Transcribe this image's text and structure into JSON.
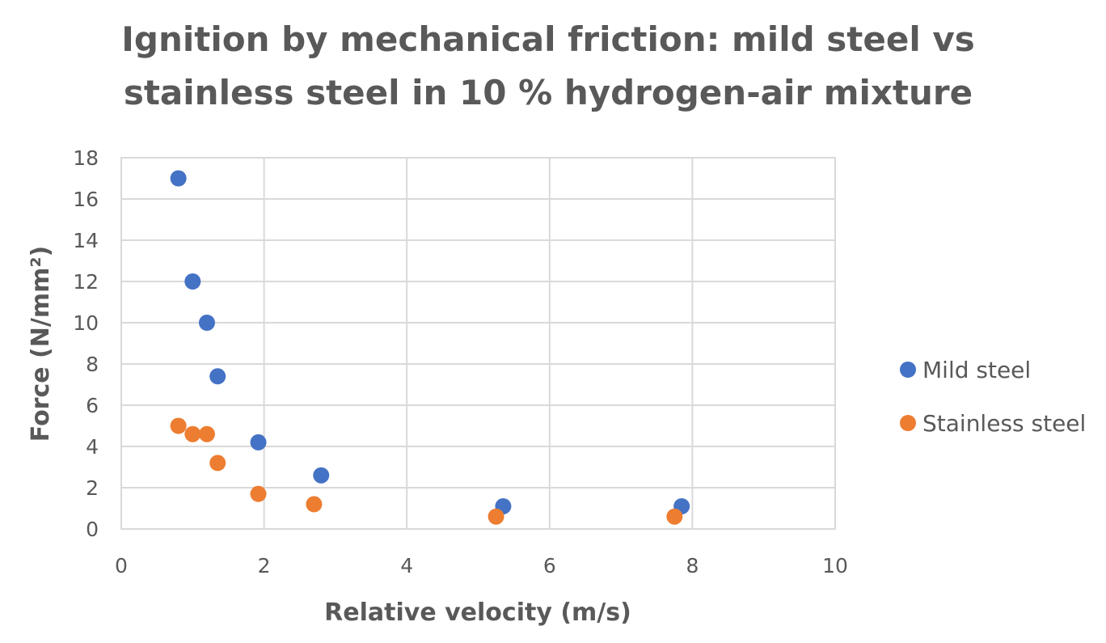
{
  "chart_data": {
    "type": "scatter",
    "title_lines": [
      "Ignition by mechanical friction: mild steel vs",
      "stainless steel in 10 % hydrogen-air mixture"
    ],
    "xlabel": "Relative velocity (m/s)",
    "ylabel": "Force (N/mm²)",
    "xlim": [
      0,
      10
    ],
    "ylim": [
      0,
      18
    ],
    "x_ticks": [
      0,
      2,
      4,
      6,
      8,
      10
    ],
    "y_ticks": [
      0,
      2,
      4,
      6,
      8,
      10,
      12,
      14,
      16,
      18
    ],
    "grid": true,
    "legend_position": "right",
    "series": [
      {
        "name": "Mild steel",
        "color": "#4472C4",
        "points": [
          {
            "x": 0.8,
            "y": 17
          },
          {
            "x": 1.0,
            "y": 12
          },
          {
            "x": 1.2,
            "y": 10
          },
          {
            "x": 1.35,
            "y": 7.4
          },
          {
            "x": 1.92,
            "y": 4.2
          },
          {
            "x": 2.8,
            "y": 2.6
          },
          {
            "x": 5.35,
            "y": 1.1
          },
          {
            "x": 7.85,
            "y": 1.1
          }
        ]
      },
      {
        "name": "Stainless steel",
        "color": "#ED7D31",
        "points": [
          {
            "x": 0.8,
            "y": 5.0
          },
          {
            "x": 1.0,
            "y": 4.6
          },
          {
            "x": 1.2,
            "y": 4.6
          },
          {
            "x": 1.35,
            "y": 3.2
          },
          {
            "x": 1.92,
            "y": 1.7
          },
          {
            "x": 2.7,
            "y": 1.2
          },
          {
            "x": 5.25,
            "y": 0.6
          },
          {
            "x": 7.75,
            "y": 0.6
          }
        ]
      }
    ]
  }
}
